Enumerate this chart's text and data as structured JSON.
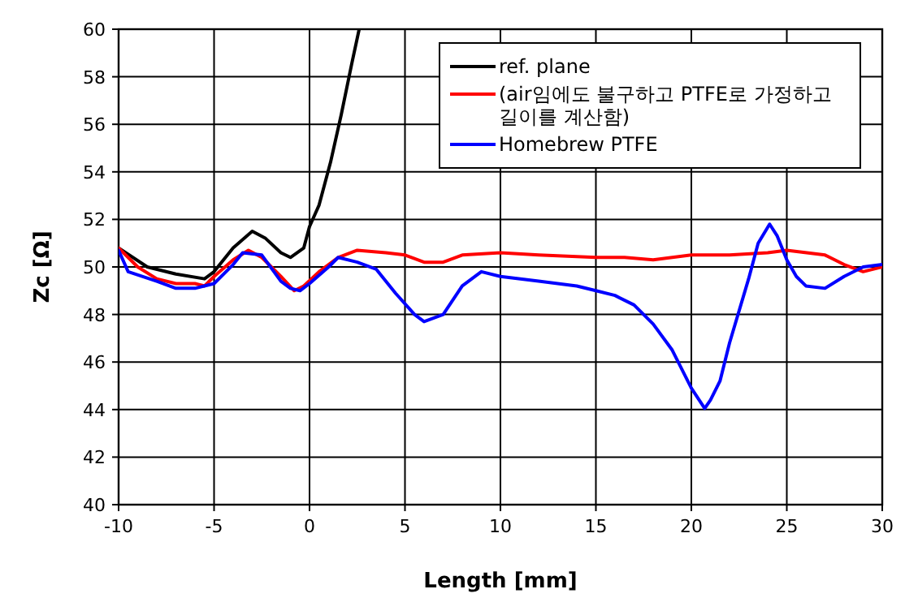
{
  "chart_data": {
    "type": "line",
    "xlabel": "Length [mm]",
    "ylabel": "Zc [Ω]",
    "xlim": [
      -10,
      30
    ],
    "xticks": [
      -10,
      -5,
      0,
      5,
      10,
      15,
      20,
      25,
      30
    ],
    "ylim": [
      40,
      60
    ],
    "yticks": [
      40,
      42,
      44,
      46,
      48,
      50,
      52,
      54,
      56,
      58,
      60
    ],
    "grid": true,
    "legend": "top right",
    "marker": "none",
    "line_style": "solid",
    "series": [
      {
        "name": "ref. plane",
        "color": "#000000",
        "x": [
          -10,
          -8.5,
          -7,
          -5.5,
          -5,
          -4,
          -3,
          -2.3,
          -1.5,
          -1,
          -0.3,
          0,
          0.5,
          1.1,
          1.66,
          2.2,
          2.6
        ],
        "values": [
          50.8,
          50.0,
          49.7,
          49.5,
          49.8,
          50.8,
          51.5,
          51.2,
          50.6,
          50.4,
          50.8,
          51.7,
          52.6,
          54.4,
          56.4,
          58.5,
          60
        ]
      },
      {
        "name": "(air임에도 불구하고 PTFE로 가정하고 길이를 계산함)",
        "color": "#ff0000",
        "x": [
          -10,
          -9,
          -8,
          -7,
          -6,
          -5.5,
          -5,
          -4,
          -3.2,
          -2.5,
          -1.5,
          -0.8,
          -0.3,
          0.5,
          1.5,
          2.5,
          4,
          5,
          6,
          7,
          8,
          10,
          12,
          15,
          16.5,
          18,
          20,
          22,
          24,
          25,
          27,
          28,
          29,
          30
        ],
        "values": [
          50.8,
          50.0,
          49.5,
          49.3,
          49.3,
          49.2,
          49.6,
          50.3,
          50.7,
          50.4,
          49.6,
          49.0,
          49.2,
          49.8,
          50.4,
          50.7,
          50.6,
          50.5,
          50.2,
          50.2,
          50.5,
          50.6,
          50.5,
          50.4,
          50.4,
          50.3,
          50.5,
          50.5,
          50.6,
          50.7,
          50.5,
          50.1,
          49.8,
          50.0
        ]
      },
      {
        "name": "Homebrew PTFE",
        "color": "#0000ff",
        "x": [
          -10,
          -9.5,
          -8,
          -7,
          -6,
          -5,
          -4,
          -3.5,
          -2.5,
          -1.5,
          -1,
          -0.5,
          0,
          1,
          1.5,
          2.5,
          3.5,
          4.5,
          5.5,
          6,
          7,
          8,
          9,
          10,
          12,
          14,
          15,
          16,
          17,
          18,
          19,
          20,
          20.7,
          21,
          21.5,
          22,
          23,
          23.5,
          24.1,
          24.5,
          25,
          25.5,
          26,
          27,
          28,
          29,
          30
        ],
        "values": [
          50.7,
          49.8,
          49.4,
          49.1,
          49.1,
          49.3,
          50.1,
          50.6,
          50.5,
          49.4,
          49.1,
          49.0,
          49.3,
          50.0,
          50.4,
          50.2,
          49.9,
          48.9,
          48.0,
          47.7,
          48.0,
          49.2,
          49.8,
          49.6,
          49.4,
          49.2,
          49.0,
          48.8,
          48.4,
          47.6,
          46.5,
          44.9,
          44.05,
          44.4,
          45.2,
          46.8,
          49.5,
          51.0,
          51.8,
          51.3,
          50.3,
          49.6,
          49.2,
          49.1,
          49.6,
          50.0,
          50.1
        ]
      }
    ]
  }
}
